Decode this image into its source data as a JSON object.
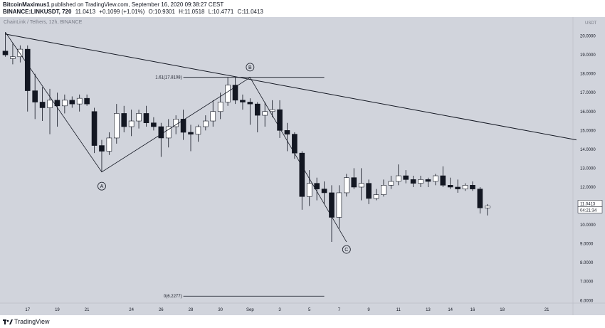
{
  "header": {
    "publisher": "BitcoinMaximus1",
    "published_text": "published on TradingView.com, September 16, 2020 09:38:27 CEST",
    "symbol": "BINANCE:LINKUSDT, 720",
    "last": "11.0413",
    "change": "+0.1099 (+1.01%)",
    "open_label": "O:",
    "open": "10.9301",
    "high_label": "H:",
    "high": "11.0518",
    "low_label": "L:",
    "low": "10.4771",
    "close_label": "C:",
    "close": "11.0413"
  },
  "footer": {
    "logo_text": "TradingView"
  },
  "colors": {
    "chart_bg": "#d1d4dc",
    "candle_up": "#ffffff",
    "candle_down": "#131722",
    "line": "#131722"
  },
  "chart_data": {
    "type": "candlestick",
    "title": "ChainLink / Tethers, 12h, BINANCE",
    "currency_label": "USDT",
    "ylim": [
      5.86,
      21.0
    ],
    "y_ticks": [
      "6.0000",
      "7.0000",
      "8.0000",
      "9.0000",
      "10.0000",
      "11.0000",
      "12.0000",
      "13.0000",
      "14.0000",
      "15.0000",
      "16.0000",
      "17.0000",
      "18.0000",
      "19.0000",
      "20.0000"
    ],
    "x_ticks": [
      {
        "i": 3,
        "label": "17"
      },
      {
        "i": 7,
        "label": "19"
      },
      {
        "i": 11,
        "label": "21"
      },
      {
        "i": 17,
        "label": "24"
      },
      {
        "i": 21,
        "label": "26"
      },
      {
        "i": 25,
        "label": "28"
      },
      {
        "i": 29,
        "label": "30"
      },
      {
        "i": 33,
        "label": "Sep"
      },
      {
        "i": 37,
        "label": "3"
      },
      {
        "i": 41,
        "label": "5"
      },
      {
        "i": 45,
        "label": "7"
      },
      {
        "i": 49,
        "label": "9"
      },
      {
        "i": 53,
        "label": "11"
      },
      {
        "i": 57,
        "label": "13"
      },
      {
        "i": 60,
        "label": "14"
      },
      {
        "i": 63,
        "label": "16"
      },
      {
        "i": 67,
        "label": "18"
      },
      {
        "i": 73,
        "label": "21"
      }
    ],
    "candles": [
      {
        "o": 19.2,
        "h": 20.2,
        "l": 18.9,
        "c": 19.0
      },
      {
        "o": 18.8,
        "h": 19.6,
        "l": 18.5,
        "c": 18.9
      },
      {
        "o": 18.9,
        "h": 19.5,
        "l": 18.6,
        "c": 19.3
      },
      {
        "o": 19.3,
        "h": 19.5,
        "l": 16.0,
        "c": 17.1
      },
      {
        "o": 17.1,
        "h": 18.0,
        "l": 15.6,
        "c": 16.5
      },
      {
        "o": 16.5,
        "h": 17.3,
        "l": 15.5,
        "c": 16.2
      },
      {
        "o": 16.2,
        "h": 17.2,
        "l": 14.8,
        "c": 16.6
      },
      {
        "o": 16.6,
        "h": 17.0,
        "l": 15.2,
        "c": 16.3
      },
      {
        "o": 16.3,
        "h": 16.9,
        "l": 15.9,
        "c": 16.6
      },
      {
        "o": 16.6,
        "h": 16.8,
        "l": 16.2,
        "c": 16.4
      },
      {
        "o": 16.4,
        "h": 16.9,
        "l": 16.0,
        "c": 16.7
      },
      {
        "o": 16.7,
        "h": 16.9,
        "l": 16.3,
        "c": 16.4
      },
      {
        "o": 16.0,
        "h": 16.2,
        "l": 13.8,
        "c": 14.2
      },
      {
        "o": 14.2,
        "h": 14.5,
        "l": 12.8,
        "c": 13.9
      },
      {
        "o": 13.9,
        "h": 14.9,
        "l": 13.7,
        "c": 14.6
      },
      {
        "o": 14.6,
        "h": 16.4,
        "l": 14.3,
        "c": 15.9
      },
      {
        "o": 15.9,
        "h": 16.3,
        "l": 14.9,
        "c": 15.2
      },
      {
        "o": 15.2,
        "h": 16.1,
        "l": 14.7,
        "c": 15.5
      },
      {
        "o": 15.5,
        "h": 16.1,
        "l": 15.1,
        "c": 15.9
      },
      {
        "o": 15.9,
        "h": 16.3,
        "l": 15.2,
        "c": 15.4
      },
      {
        "o": 15.4,
        "h": 15.7,
        "l": 15.0,
        "c": 15.2
      },
      {
        "o": 15.2,
        "h": 15.4,
        "l": 13.6,
        "c": 14.6
      },
      {
        "o": 14.6,
        "h": 15.6,
        "l": 14.1,
        "c": 15.2
      },
      {
        "o": 15.2,
        "h": 15.8,
        "l": 14.8,
        "c": 15.6
      },
      {
        "o": 15.6,
        "h": 16.1,
        "l": 14.5,
        "c": 14.9
      },
      {
        "o": 14.9,
        "h": 15.3,
        "l": 13.9,
        "c": 14.8
      },
      {
        "o": 14.8,
        "h": 15.3,
        "l": 14.4,
        "c": 15.2
      },
      {
        "o": 15.2,
        "h": 15.8,
        "l": 15.0,
        "c": 15.5
      },
      {
        "o": 15.5,
        "h": 16.6,
        "l": 15.2,
        "c": 16.0
      },
      {
        "o": 16.0,
        "h": 17.0,
        "l": 15.6,
        "c": 16.5
      },
      {
        "o": 16.5,
        "h": 17.8,
        "l": 16.3,
        "c": 17.4
      },
      {
        "o": 17.4,
        "h": 17.8,
        "l": 16.4,
        "c": 16.6
      },
      {
        "o": 16.6,
        "h": 16.9,
        "l": 16.1,
        "c": 16.5
      },
      {
        "o": 16.5,
        "h": 16.7,
        "l": 15.3,
        "c": 16.4
      },
      {
        "o": 16.4,
        "h": 16.5,
        "l": 14.9,
        "c": 15.8
      },
      {
        "o": 15.8,
        "h": 16.5,
        "l": 15.2,
        "c": 16.0
      },
      {
        "o": 16.0,
        "h": 16.6,
        "l": 15.7,
        "c": 16.1
      },
      {
        "o": 16.1,
        "h": 16.6,
        "l": 14.6,
        "c": 15.0
      },
      {
        "o": 15.0,
        "h": 15.4,
        "l": 13.9,
        "c": 14.8
      },
      {
        "o": 14.8,
        "h": 14.9,
        "l": 13.5,
        "c": 13.8
      },
      {
        "o": 13.8,
        "h": 13.9,
        "l": 10.8,
        "c": 11.5
      },
      {
        "o": 11.5,
        "h": 12.9,
        "l": 11.0,
        "c": 12.2
      },
      {
        "o": 12.2,
        "h": 12.5,
        "l": 11.3,
        "c": 11.9
      },
      {
        "o": 11.9,
        "h": 12.3,
        "l": 11.1,
        "c": 11.7
      },
      {
        "o": 11.7,
        "h": 12.1,
        "l": 9.1,
        "c": 10.4
      },
      {
        "o": 10.4,
        "h": 12.1,
        "l": 9.8,
        "c": 11.7
      },
      {
        "o": 11.7,
        "h": 12.7,
        "l": 11.5,
        "c": 12.5
      },
      {
        "o": 12.5,
        "h": 13.0,
        "l": 11.9,
        "c": 12.0
      },
      {
        "o": 12.0,
        "h": 13.0,
        "l": 11.3,
        "c": 12.2
      },
      {
        "o": 12.2,
        "h": 12.4,
        "l": 11.1,
        "c": 11.4
      },
      {
        "o": 11.4,
        "h": 11.9,
        "l": 11.3,
        "c": 11.6
      },
      {
        "o": 11.6,
        "h": 12.4,
        "l": 11.5,
        "c": 12.1
      },
      {
        "o": 12.1,
        "h": 12.6,
        "l": 11.9,
        "c": 12.3
      },
      {
        "o": 12.3,
        "h": 13.2,
        "l": 12.1,
        "c": 12.6
      },
      {
        "o": 12.6,
        "h": 12.9,
        "l": 12.2,
        "c": 12.4
      },
      {
        "o": 12.4,
        "h": 12.6,
        "l": 12.0,
        "c": 12.2
      },
      {
        "o": 12.2,
        "h": 12.6,
        "l": 12.0,
        "c": 12.4
      },
      {
        "o": 12.4,
        "h": 12.5,
        "l": 12.0,
        "c": 12.3
      },
      {
        "o": 12.3,
        "h": 12.7,
        "l": 12.1,
        "c": 12.6
      },
      {
        "o": 12.6,
        "h": 13.1,
        "l": 12.0,
        "c": 12.1
      },
      {
        "o": 12.1,
        "h": 12.5,
        "l": 11.9,
        "c": 12.0
      },
      {
        "o": 12.0,
        "h": 12.4,
        "l": 11.7,
        "c": 11.9
      },
      {
        "o": 11.9,
        "h": 12.2,
        "l": 11.8,
        "c": 12.1
      },
      {
        "o": 12.1,
        "h": 12.3,
        "l": 11.8,
        "c": 11.9
      },
      {
        "o": 11.9,
        "h": 12.0,
        "l": 10.6,
        "c": 10.9
      },
      {
        "o": 10.9,
        "h": 11.1,
        "l": 10.5,
        "c": 11.0
      }
    ],
    "annotations": {
      "trendline": {
        "from": {
          "i": 0,
          "p": 20.1
        },
        "to": {
          "i": 77,
          "p": 14.5
        }
      },
      "wave": [
        {
          "i": 0,
          "p": 20.2
        },
        {
          "i": 13,
          "p": 12.8
        },
        {
          "i": 33,
          "p": 17.8
        },
        {
          "i": 46,
          "p": 9.1
        }
      ],
      "points": [
        {
          "label": "A",
          "i": 13,
          "p": 12.05
        },
        {
          "label": "B",
          "i": 33,
          "p": 18.35
        },
        {
          "label": "C",
          "i": 46,
          "p": 8.7
        }
      ],
      "fib_top": {
        "label": "1.61(17.8108)",
        "p": 17.8108,
        "from_i": 24,
        "to_i": 43
      },
      "fib_bottom": {
        "label": "0(6.2277)",
        "p": 6.2277,
        "from_i": 24,
        "to_i": 43
      }
    },
    "last_price": {
      "label": "11.0413",
      "p": 11.0413
    },
    "countdown": {
      "label": "04:21:34"
    }
  }
}
